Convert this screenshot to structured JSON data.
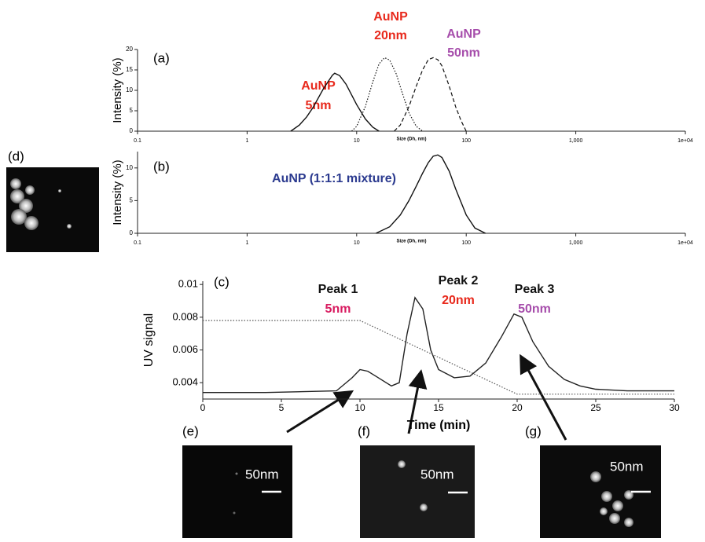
{
  "chart_data": [
    {
      "type": "line",
      "panel_label": "(a)",
      "x_label": "Size (Dh, nm)",
      "y_label": "Intensity (%)",
      "xscale": "log",
      "xlim": [
        0.1,
        10000
      ],
      "xticks": [
        0.1,
        1,
        10,
        100,
        {
          "value": 1000,
          "label": "1,000"
        },
        {
          "value": 10000,
          "label": "1e+04"
        }
      ],
      "ylim": [
        0,
        20
      ],
      "yticks": [
        0,
        5,
        10,
        15,
        20
      ],
      "series": [
        {
          "color": "#111111",
          "style": "solid",
          "x": [
            2.5,
            3,
            3.5,
            4,
            5,
            6,
            6.3,
            7,
            8,
            10,
            12,
            14,
            16
          ],
          "values": [
            0,
            1.5,
            3.5,
            5.8,
            10.5,
            13.7,
            14.2,
            13.6,
            11.5,
            6.5,
            3,
            1,
            0
          ]
        },
        {
          "color": "#111111",
          "style": "dotted",
          "x": [
            9,
            10,
            12,
            14,
            16,
            18,
            20,
            23,
            26,
            30,
            35,
            40
          ],
          "values": [
            0,
            1.2,
            6,
            12,
            16.5,
            18,
            17.4,
            14,
            9.5,
            4.5,
            1.2,
            0
          ]
        },
        {
          "color": "#111111",
          "style": "dashed",
          "x": [
            22,
            25,
            30,
            35,
            40,
            45,
            50,
            55,
            60,
            70,
            80,
            90,
            100
          ],
          "values": [
            0,
            1.5,
            6,
            11,
            15,
            17.5,
            18,
            17.5,
            16,
            11,
            6,
            2.5,
            0
          ]
        }
      ],
      "annotations": [
        {
          "text": "AuNP",
          "color": "#e8291c"
        },
        {
          "text": "5nm",
          "color": "#e8291c"
        },
        {
          "text": "AuNP",
          "color": "#e8291c"
        },
        {
          "text": "20nm",
          "color": "#e8291c"
        },
        {
          "text": "AuNP",
          "color": "#a64dab"
        },
        {
          "text": "50nm",
          "color": "#a64dab"
        }
      ]
    },
    {
      "type": "line",
      "panel_label": "(b)",
      "x_label": "Size (Dh, nm)",
      "y_label": "Intensity (%)",
      "xscale": "log",
      "xlim": [
        0.1,
        10000
      ],
      "xticks": [
        0.1,
        1,
        10,
        100,
        {
          "value": 1000,
          "label": "1,000"
        },
        {
          "value": 10000,
          "label": "1e+04"
        }
      ],
      "ylim": [
        0,
        12.5
      ],
      "yticks": [
        0,
        5,
        10
      ],
      "series": [
        {
          "color": "#111111",
          "style": "solid",
          "x": [
            15,
            20,
            25,
            30,
            35,
            40,
            45,
            50,
            55,
            60,
            70,
            80,
            100,
            120,
            150
          ],
          "values": [
            0,
            1,
            2.8,
            5,
            7.2,
            9.2,
            10.8,
            11.8,
            12,
            11.6,
            9.5,
            6.8,
            2.8,
            0.8,
            0
          ]
        }
      ],
      "annotations": [
        {
          "text": "AuNP (1:1:1 mixture)",
          "color": "#2b3a8f"
        }
      ]
    },
    {
      "type": "line",
      "panel_label": "(c)",
      "x_label": "Time (min)",
      "y_label": "UV signal",
      "xscale": "linear",
      "xlim": [
        0,
        30
      ],
      "xticks": [
        0,
        5,
        10,
        15,
        20,
        25,
        30
      ],
      "ylim": [
        0.003,
        0.0102
      ],
      "yticks": [
        0.004,
        0.006,
        0.008,
        0.01
      ],
      "series": [
        {
          "color": "#222222",
          "style": "solid",
          "x": [
            0,
            4,
            8.5,
            9.5,
            10,
            10.5,
            11,
            12,
            12.5,
            13,
            13.5,
            14,
            14.5,
            15,
            16,
            17,
            18,
            19,
            19.8,
            20.3,
            21,
            22,
            23,
            24,
            25,
            27,
            30
          ],
          "values": [
            0.0034,
            0.0034,
            0.0035,
            0.0043,
            0.0048,
            0.0047,
            0.0044,
            0.0038,
            0.004,
            0.007,
            0.0092,
            0.0085,
            0.006,
            0.0048,
            0.0043,
            0.0044,
            0.0052,
            0.0068,
            0.0082,
            0.008,
            0.0065,
            0.005,
            0.0042,
            0.0038,
            0.0036,
            0.0035,
            0.0035
          ]
        },
        {
          "color": "#555555",
          "style": "dotted",
          "x": [
            0,
            10,
            20,
            30
          ],
          "values": [
            0.0078,
            0.0078,
            0.0033,
            0.0033
          ]
        }
      ],
      "annotations": [
        {
          "text": "Peak 1",
          "color": "#111111"
        },
        {
          "text": "5nm",
          "color": "#d81b60"
        },
        {
          "text": "Peak 2",
          "color": "#111111"
        },
        {
          "text": "20nm",
          "color": "#e8291c"
        },
        {
          "text": "Peak 3",
          "color": "#111111"
        },
        {
          "text": "50nm",
          "color": "#a64dab"
        }
      ]
    }
  ],
  "images": [
    {
      "label": "(d)"
    },
    {
      "label": "(e)",
      "scale": "50nm"
    },
    {
      "label": "(f)",
      "scale": "50nm"
    },
    {
      "label": "(g)",
      "scale": "50nm"
    }
  ]
}
